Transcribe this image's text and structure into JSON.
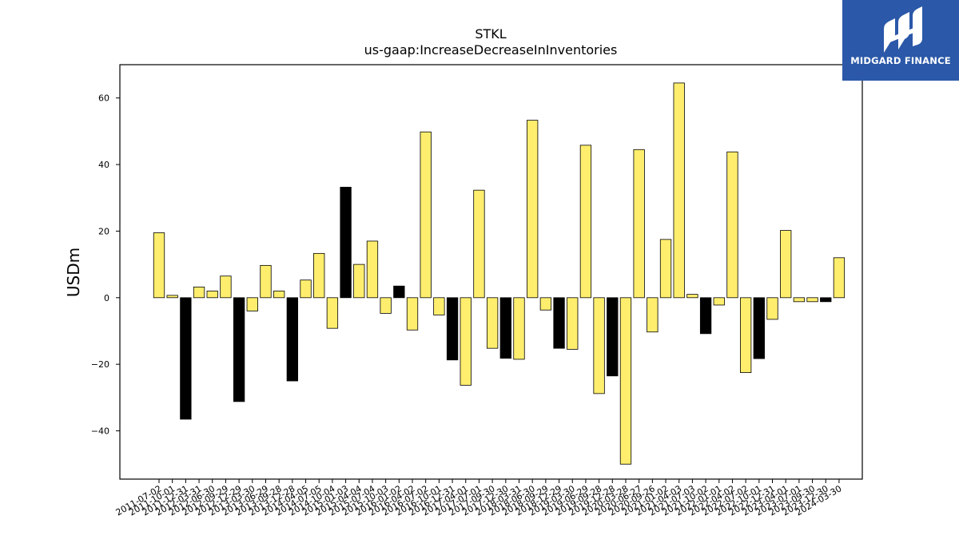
{
  "logo": {
    "text": "MIDGARD FINANCE",
    "background": "#2b58a8",
    "icon": "midgard-logo-icon"
  },
  "chart_data": {
    "type": "bar",
    "title": "STKL",
    "subtitle": "us-gaap:IncreaseDecreaseInInventories",
    "xlabel": "",
    "ylabel": "USDm",
    "ylim": [
      -54.5,
      70
    ],
    "yticks": [
      -40,
      -20,
      0,
      20,
      40,
      60
    ],
    "grid": false,
    "colors": {
      "positive": "#ffee6e",
      "highlight": "#000000",
      "edge": "#000000"
    },
    "categories": [
      "2011-07-02",
      "2011-10-01",
      "2011-12-31",
      "2012-03-31",
      "2012-06-30",
      "2012-09-29",
      "2012-12-29",
      "2013-03-30",
      "2013-06-29",
      "2013-09-28",
      "2013-12-28",
      "2014-04-05",
      "2014-07-05",
      "2014-10-04",
      "2015-01-03",
      "2015-04-04",
      "2015-07-04",
      "2015-10-03",
      "2016-01-02",
      "2016-04-02",
      "2016-07-02",
      "2016-10-01",
      "2016-12-31",
      "2017-04-01",
      "2017-07-01",
      "2017-09-30",
      "2017-12-30",
      "2018-03-31",
      "2018-06-30",
      "2018-09-29",
      "2018-12-29",
      "2019-03-30",
      "2019-06-29",
      "2019-09-28",
      "2019-12-28",
      "2020-03-28",
      "2020-06-27",
      "2020-09-26",
      "2021-01-02",
      "2021-04-03",
      "2021-07-03",
      "2021-10-02",
      "2022-01-01",
      "2022-04-02",
      "2022-07-02",
      "2022-10-01",
      "2022-12-31",
      "2023-04-01",
      "2023-07-01",
      "2023-09-30",
      "2023-12-30",
      "2024-03-30"
    ],
    "values": [
      19.5,
      0.7,
      -36.5,
      3.2,
      2.0,
      6.5,
      -31.2,
      -4.0,
      9.7,
      2.0,
      -25.0,
      5.3,
      13.3,
      -9.2,
      33.2,
      10.0,
      17.0,
      -4.7,
      3.5,
      -9.7,
      49.8,
      -5.2,
      -18.7,
      -26.3,
      32.3,
      -15.2,
      -18.2,
      -18.5,
      53.3,
      -3.7,
      -15.2,
      -15.5,
      45.8,
      -28.8,
      -23.5,
      -50.0,
      44.5,
      -10.3,
      17.5,
      64.5,
      1.0,
      -10.8,
      -2.2,
      43.8,
      -22.5,
      -18.3,
      -6.5,
      20.2,
      -1.2,
      -1.2,
      -1.2,
      12.0
    ],
    "highlight": [
      false,
      false,
      true,
      false,
      false,
      false,
      true,
      false,
      false,
      false,
      true,
      false,
      false,
      false,
      true,
      false,
      false,
      false,
      true,
      false,
      false,
      false,
      true,
      false,
      false,
      false,
      true,
      false,
      false,
      false,
      true,
      false,
      false,
      false,
      true,
      false,
      false,
      false,
      false,
      false,
      false,
      true,
      false,
      false,
      false,
      true,
      false,
      false,
      false,
      false,
      true,
      false
    ]
  }
}
